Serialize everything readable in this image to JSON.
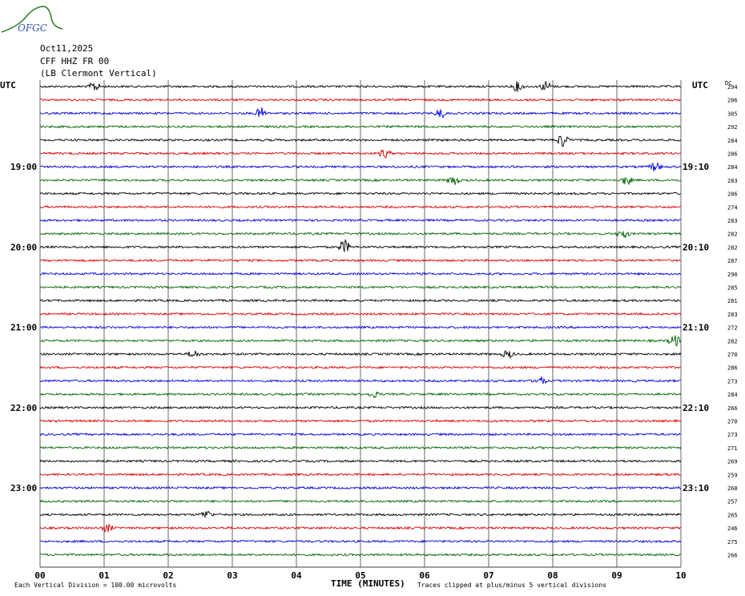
{
  "logo": {
    "text": "OFGC",
    "color": "#2a7a2a",
    "text_color": "#3355aa"
  },
  "header": {
    "date": "Oct11,2025",
    "station": "CFF HHZ FR 00",
    "location": "(LB  Clermont Vertical)"
  },
  "left_axis_label": "UTC",
  "right_axis_label": "UTC",
  "dc_label": "DC",
  "footer": {
    "scale_note": "Each Vertical Division =  100.00 microvolts",
    "xlabel": "TIME (MINUTES)",
    "clip_note": "Traces clipped at plus/minus 5 vertical divisions"
  },
  "colors": {
    "cycle": [
      "#000000",
      "#dd0000",
      "#0000dd",
      "#006600"
    ],
    "grid": "#000000"
  },
  "chart_data": {
    "type": "line",
    "title": "",
    "xlabel": "TIME (MINUTES)",
    "ylabel": "",
    "xlim": [
      0,
      10
    ],
    "x_ticks": [
      "00",
      "01",
      "02",
      "03",
      "04",
      "05",
      "06",
      "07",
      "08",
      "09",
      "10"
    ],
    "left_hour_labels": [
      {
        "trace": 6,
        "label": "19:00"
      },
      {
        "trace": 12,
        "label": "20:00"
      },
      {
        "trace": 18,
        "label": "21:00"
      },
      {
        "trace": 24,
        "label": "22:00"
      },
      {
        "trace": 30,
        "label": "23:00"
      }
    ],
    "right_hour_labels": [
      {
        "trace": 6,
        "label": "19:10"
      },
      {
        "trace": 12,
        "label": "20:10"
      },
      {
        "trace": 18,
        "label": "21:10"
      },
      {
        "trace": 24,
        "label": "22:10"
      },
      {
        "trace": 30,
        "label": "23:10"
      }
    ],
    "dc_offsets": [
      294,
      286,
      305,
      292,
      284,
      286,
      284,
      283,
      286,
      274,
      283,
      282,
      282,
      287,
      290,
      285,
      281,
      283,
      272,
      282,
      270,
      286,
      273,
      284,
      266,
      270,
      273,
      271,
      269,
      259,
      268,
      257,
      265,
      246,
      275,
      266
    ],
    "events": [
      {
        "trace": 0,
        "minute": 0.85,
        "amp": 6
      },
      {
        "trace": 0,
        "minute": 7.45,
        "amp": 6
      },
      {
        "trace": 0,
        "minute": 7.9,
        "amp": 7
      },
      {
        "trace": 2,
        "minute": 3.45,
        "amp": 7
      },
      {
        "trace": 2,
        "minute": 6.25,
        "amp": 6
      },
      {
        "trace": 4,
        "minute": 8.15,
        "amp": 9
      },
      {
        "trace": 5,
        "minute": 5.38,
        "amp": 6
      },
      {
        "trace": 6,
        "minute": 9.6,
        "amp": 6
      },
      {
        "trace": 7,
        "minute": 6.45,
        "amp": 7
      },
      {
        "trace": 7,
        "minute": 9.15,
        "amp": 6
      },
      {
        "trace": 11,
        "minute": 9.1,
        "amp": 6
      },
      {
        "trace": 12,
        "minute": 4.75,
        "amp": 9
      },
      {
        "trace": 19,
        "minute": 9.9,
        "amp": 8
      },
      {
        "trace": 20,
        "minute": 2.4,
        "amp": 5
      },
      {
        "trace": 20,
        "minute": 7.3,
        "amp": 5
      },
      {
        "trace": 22,
        "minute": 7.8,
        "amp": 6
      },
      {
        "trace": 23,
        "minute": 5.2,
        "amp": 4
      },
      {
        "trace": 32,
        "minute": 2.6,
        "amp": 5
      },
      {
        "trace": 33,
        "minute": 1.05,
        "amp": 5
      }
    ]
  }
}
